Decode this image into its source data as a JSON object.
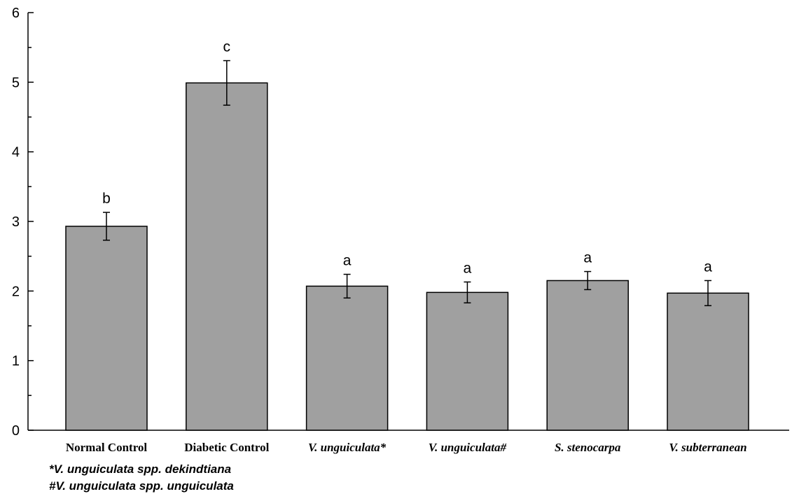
{
  "chart_data": {
    "type": "bar",
    "title": "",
    "xlabel": "",
    "ylabel": "",
    "ylim": [
      0,
      6
    ],
    "yticks": [
      0,
      1,
      2,
      3,
      4,
      5,
      6
    ],
    "grid": false,
    "bar_color": "#a0a0a0",
    "categories": [
      {
        "label": "Normal Control",
        "italic": false
      },
      {
        "label": "Diabetic Control",
        "italic": false
      },
      {
        "label": "V. unguiculata*",
        "italic": true
      },
      {
        "label": "V. unguiculata#",
        "italic": true
      },
      {
        "label": "S. stenocarpa",
        "italic": true
      },
      {
        "label": "V. subterranean",
        "italic": true
      }
    ],
    "values": [
      2.93,
      4.99,
      2.07,
      1.98,
      2.15,
      1.97
    ],
    "errors": [
      0.2,
      0.32,
      0.17,
      0.15,
      0.13,
      0.18
    ],
    "significance": [
      "b",
      "c",
      "a",
      "a",
      "a",
      "a"
    ]
  },
  "footnotes": {
    "line1": "*V. unguiculata spp. dekindtiana",
    "line2": "#V. unguiculata spp. unguiculata"
  }
}
